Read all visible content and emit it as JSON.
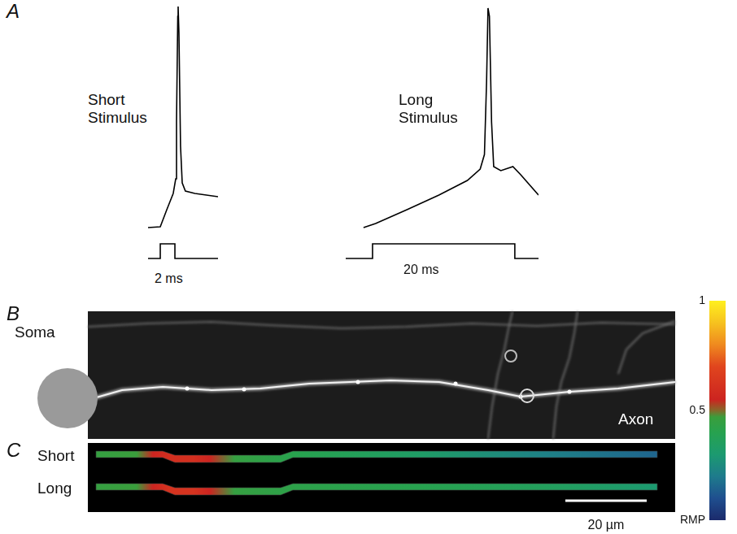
{
  "chart_data": [
    {
      "type": "line",
      "title": "Short Stimulus",
      "annotations": [
        {
          "text": "2 ms"
        }
      ],
      "xlim": [
        0,
        9.56
      ],
      "ylim": [
        0,
        330
      ],
      "grid": false,
      "tick_labels": false,
      "series": [
        {
          "color": "#000000",
          "x": [
            0,
            1.67,
            2.56,
            3.44,
            3.78,
            3.89,
            4.06,
            4.11,
            4.22,
            4.44,
            4.67,
            5.1,
            6.4,
            9.56
          ],
          "values": [
            50,
            51,
            72,
            92,
            110,
            180,
            310,
            322,
            290,
            150,
            105,
            95,
            92,
            88
          ]
        },
        {
          "color": "#000000",
          "x": [
            0,
            1.67,
            1.67,
            3.67,
            3.67,
            9.56
          ],
          "values": [
            12,
            12,
            30,
            30,
            12,
            12
          ]
        }
      ]
    },
    {
      "type": "line",
      "title": "Long Stimulus",
      "annotations": [
        {
          "text": "20 ms"
        }
      ],
      "xlim": [
        0,
        27.1
      ],
      "ylim": [
        0,
        330
      ],
      "grid": false,
      "tick_labels": false,
      "series": [
        {
          "color": "#000000",
          "x": [
            2.5,
            4.2,
            8.6,
            13.1,
            17.1,
            18.9,
            19.5,
            19.8,
            20.0,
            20.2,
            20.5,
            20.8,
            21.8,
            23.5,
            24.6,
            27.1
          ],
          "values": [
            50,
            55,
            72,
            90,
            108,
            122,
            140,
            230,
            320,
            310,
            180,
            125,
            120,
            125,
            115,
            90
          ]
        },
        {
          "color": "#000000",
          "x": [
            0,
            3.77,
            3.77,
            23.77,
            23.77,
            27.1
          ],
          "values": [
            12,
            12,
            30,
            30,
            12,
            12
          ]
        }
      ]
    }
  ],
  "panel_A": {
    "letter": "A"
  },
  "panel_B": {
    "letter": "B",
    "soma": "Soma",
    "axon": "Axon"
  },
  "panel_C": {
    "letter": "C",
    "rows": [
      {
        "label": "Short",
        "x": [
          0,
          10,
          14,
          18,
          24,
          28,
          34,
          50,
          80,
          110,
          138
        ],
        "values": [
          0.45,
          0.47,
          0.55,
          0.6,
          0.6,
          0.55,
          0.45,
          0.4,
          0.33,
          0.22,
          0.15
        ]
      },
      {
        "label": "Long",
        "x": [
          0,
          10,
          14,
          18,
          24,
          28,
          34,
          50,
          80,
          110,
          138
        ],
        "values": [
          0.45,
          0.47,
          0.55,
          0.62,
          0.62,
          0.55,
          0.45,
          0.42,
          0.4,
          0.36,
          0.3
        ]
      }
    ],
    "scale_bar": {
      "value": 20,
      "label": "20 µm"
    },
    "colorbar": {
      "range": [
        0,
        1
      ],
      "ticks": [
        {
          "value": 0,
          "label": "RMP"
        },
        0.5,
        1
      ]
    }
  }
}
